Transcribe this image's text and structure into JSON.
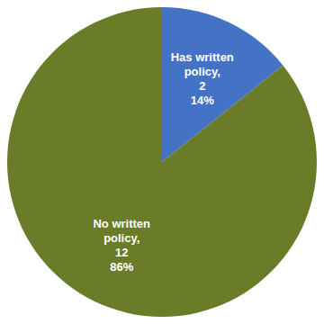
{
  "chart_data": {
    "type": "pie",
    "categories": [
      "Has written\npolicy,",
      "No written\npolicy,"
    ],
    "values": [
      2,
      12
    ],
    "percentages": [
      14,
      86
    ],
    "percentage_labels": [
      "14%",
      "86%"
    ],
    "colors": [
      "#4472C4",
      "#6B7C29"
    ],
    "data_labels": true
  }
}
